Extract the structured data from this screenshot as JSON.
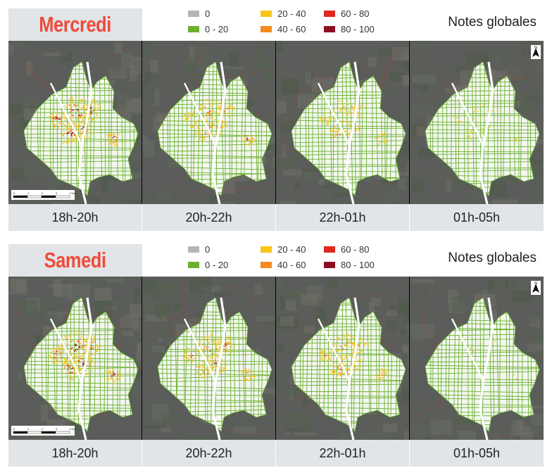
{
  "panel_title": "Notes globales",
  "legend": [
    {
      "label": "0",
      "color": "#b5b5b5"
    },
    {
      "label": "0 - 20",
      "color": "#6ab02e"
    },
    {
      "label": "20 - 40",
      "color": "#f8c51b"
    },
    {
      "label": "40 - 60",
      "color": "#f58a1f"
    },
    {
      "label": "60 - 80",
      "color": "#e02721"
    },
    {
      "label": "80 - 100",
      "color": "#8e0d22"
    }
  ],
  "sections": [
    {
      "day": "Mercredi",
      "maps": [
        {
          "time": "18h-20h",
          "intensity": 1.0
        },
        {
          "time": "20h-22h",
          "intensity": 0.7
        },
        {
          "time": "22h-01h",
          "intensity": 0.5
        },
        {
          "time": "01h-05h",
          "intensity": 0.15
        }
      ]
    },
    {
      "day": "Samedi",
      "maps": [
        {
          "time": "18h-20h",
          "intensity": 1.0
        },
        {
          "time": "20h-22h",
          "intensity": 0.8
        },
        {
          "time": "22h-01h",
          "intensity": 0.7
        },
        {
          "time": "01h-05h",
          "intensity": 0.05
        }
      ]
    }
  ],
  "scale_bar": {
    "ticks": [
      "0",
      "1",
      "2",
      "3",
      "4 km"
    ]
  },
  "north_label": "N"
}
